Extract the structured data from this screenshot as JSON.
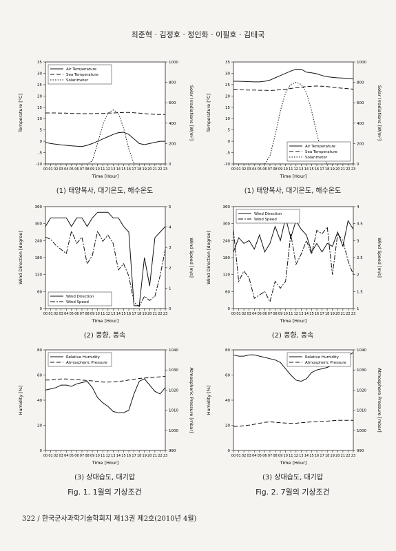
{
  "header": "최준혁 · 김정호 · 정인화 · 이필호 · 김태국",
  "footer": "322 / 한국군사과학기술학회지 제13권 제2호(2010년 4월)",
  "captions": {
    "jan_solar": "(1) 태양복사, 대기온도, 해수온도",
    "jul_solar": "(1) 태양복사, 대기온도, 해수온도",
    "jan_wind": "(2) 풍향, 풍속",
    "jul_wind": "(2) 풍향, 풍속",
    "jan_humid": "(3) 상대습도, 대기압",
    "jul_humid": "(3) 상대습도, 대기압",
    "fig1": "Fig. 1. 1월의 기상조건",
    "fig2": "Fig. 2. 7월의 기상조건"
  },
  "chart_data": [
    {
      "id": "jan_solar",
      "type": "line",
      "xlabel": "Time [Hour]",
      "ylabel": "Temperature [°C]",
      "y2label": "Solar Irradiations [W/m²]",
      "ylim": [
        -10,
        35
      ],
      "yticks": [
        -10,
        -5,
        0,
        5,
        10,
        15,
        20,
        25,
        30,
        35
      ],
      "y2lim": [
        0,
        1000
      ],
      "y2ticks": [
        0,
        200,
        400,
        600,
        800,
        1000
      ],
      "legend": "top-left",
      "x": [
        "00",
        "01",
        "02",
        "03",
        "04",
        "05",
        "06",
        "07",
        "08",
        "09",
        "10",
        "11",
        "12",
        "13",
        "14",
        "15",
        "16",
        "17",
        "18",
        "19",
        "20",
        "21",
        "22",
        "23"
      ],
      "series": [
        {
          "name": "Air Temperature",
          "axis": "left",
          "dash": "solid",
          "values": [
            -0.5,
            -1,
            -1.3,
            -1.6,
            -1.8,
            -2,
            -2.2,
            -2.3,
            -1.8,
            -1,
            0,
            1,
            2,
            3,
            3.8,
            4,
            3,
            1,
            -1,
            -1.5,
            -1,
            -0.5,
            0,
            0
          ]
        },
        {
          "name": "Sea Temperature",
          "axis": "left",
          "dash": "dashed",
          "values": [
            12.5,
            12.5,
            12.5,
            12.4,
            12.4,
            12.3,
            12.3,
            12.2,
            12.2,
            12.2,
            12.3,
            12.3,
            12.4,
            12.5,
            12.6,
            12.7,
            12.7,
            12.6,
            12.4,
            12.2,
            12,
            11.9,
            11.8,
            11.8
          ]
        },
        {
          "name": "Solarimeter",
          "axis": "right",
          "dash": "dotted",
          "values": [
            0,
            0,
            0,
            0,
            0,
            0,
            0,
            0,
            0,
            30,
            200,
            380,
            500,
            530,
            500,
            350,
            150,
            0,
            0,
            0,
            0,
            0,
            0,
            0
          ]
        }
      ]
    },
    {
      "id": "jul_solar",
      "type": "line",
      "xlabel": "Time [Hour]",
      "ylabel": "Temperature [°C]",
      "y2label": "Solar Irradiations [W/m²]",
      "ylim": [
        -10,
        35
      ],
      "yticks": [
        -10,
        -5,
        0,
        5,
        10,
        15,
        20,
        25,
        30,
        35
      ],
      "y2lim": [
        0,
        1000
      ],
      "y2ticks": [
        0,
        200,
        400,
        600,
        800,
        1000
      ],
      "legend": "bottom-right",
      "x": [
        "00",
        "01",
        "02",
        "03",
        "04",
        "05",
        "06",
        "07",
        "08",
        "09",
        "10",
        "11",
        "12",
        "13",
        "14",
        "15",
        "16",
        "17",
        "18",
        "19",
        "20",
        "21",
        "22",
        "23"
      ],
      "series": [
        {
          "name": "Air Temperature",
          "axis": "left",
          "dash": "solid",
          "values": [
            26.5,
            26.5,
            26.4,
            26.3,
            26.2,
            26.2,
            26.5,
            27,
            28,
            29,
            30,
            31,
            31.8,
            31.8,
            30.5,
            30.2,
            29.8,
            29,
            28.5,
            28.2,
            28,
            27.9,
            27.8,
            27.5
          ]
        },
        {
          "name": "Sea Temperature",
          "axis": "left",
          "dash": "dashed",
          "values": [
            23,
            22.8,
            22.7,
            22.6,
            22.6,
            22.5,
            22.5,
            22.4,
            22.5,
            22.8,
            23,
            23.3,
            23.6,
            23.9,
            24.1,
            24.3,
            24.4,
            24.3,
            24.1,
            23.9,
            23.6,
            23.4,
            23.2,
            23
          ]
        },
        {
          "name": "Solarimeter",
          "axis": "right",
          "dash": "dotted",
          "values": [
            0,
            0,
            0,
            0,
            0,
            0,
            0,
            80,
            280,
            520,
            700,
            780,
            800,
            780,
            700,
            520,
            300,
            80,
            0,
            0,
            0,
            0,
            0,
            0
          ]
        }
      ]
    },
    {
      "id": "jan_wind",
      "type": "line",
      "xlabel": "Time [Hour]",
      "ylabel": "Wind Direction [degree]",
      "y2label": "Wind Speed [m/s]",
      "ylim": [
        0,
        360
      ],
      "yticks": [
        0,
        60,
        120,
        180,
        240,
        300,
        360
      ],
      "y2lim": [
        0,
        5
      ],
      "y2ticks": [
        0,
        1,
        2,
        3,
        4,
        5
      ],
      "legend": "bottom-left",
      "x": [
        "00",
        "01",
        "02",
        "03",
        "04",
        "05",
        "06",
        "07",
        "08",
        "09",
        "10",
        "11",
        "12",
        "13",
        "14",
        "15",
        "16",
        "17",
        "18",
        "19",
        "20",
        "21",
        "22",
        "23"
      ],
      "series": [
        {
          "name": "Wind Direction",
          "axis": "left",
          "dash": "solid",
          "values": [
            290,
            320,
            320,
            320,
            320,
            290,
            320,
            320,
            290,
            320,
            340,
            340,
            340,
            320,
            320,
            290,
            270,
            10,
            10,
            180,
            80,
            250,
            270,
            290
          ]
        },
        {
          "name": "Wind Speed",
          "axis": "right",
          "dash": "dashdot",
          "values": [
            3.5,
            3.4,
            3.1,
            2.9,
            2.7,
            3.8,
            3.2,
            3.5,
            2.2,
            2.6,
            3.8,
            3.3,
            3.6,
            3.2,
            1.9,
            2.2,
            1.6,
            0.3,
            0.1,
            0.6,
            0.4,
            0.6,
            1.6,
            2.9
          ]
        }
      ]
    },
    {
      "id": "jul_wind",
      "type": "line",
      "xlabel": "Time [Hour]",
      "ylabel": "Wind Direction [degree]",
      "y2label": "Wind Speed [m/s]",
      "ylim": [
        0,
        360
      ],
      "yticks": [
        0,
        60,
        120,
        180,
        240,
        300,
        360
      ],
      "y2lim": [
        1.0,
        4.0
      ],
      "y2ticks": [
        1.0,
        1.5,
        2.0,
        2.5,
        3.0,
        3.5,
        4.0
      ],
      "legend": "top-left",
      "x": [
        "00",
        "01",
        "02",
        "03",
        "04",
        "05",
        "06",
        "07",
        "08",
        "09",
        "10",
        "11",
        "12",
        "13",
        "14",
        "15",
        "16",
        "17",
        "18",
        "19",
        "20",
        "21",
        "22",
        "23"
      ],
      "series": [
        {
          "name": "Wind Direction",
          "axis": "left",
          "dash": "solid",
          "values": [
            200,
            250,
            230,
            240,
            210,
            260,
            200,
            230,
            290,
            240,
            320,
            250,
            310,
            280,
            260,
            200,
            230,
            200,
            230,
            220,
            270,
            220,
            310,
            280
          ]
        },
        {
          "name": "Wind Speed",
          "axis": "right",
          "dash": "dashdot",
          "values": [
            3.3,
            1.8,
            2.1,
            1.9,
            1.3,
            1.4,
            1.5,
            1.2,
            1.8,
            1.6,
            1.8,
            3.2,
            2.3,
            2.6,
            3.0,
            2.6,
            3.3,
            3.2,
            3.4,
            2.0,
            3.2,
            3.0,
            2.4,
            2.0
          ]
        }
      ]
    },
    {
      "id": "jan_humid",
      "type": "line",
      "xlabel": "Time [Hour]",
      "ylabel": "Humidity [%]",
      "y2label": "Atmospheric Pressure [mbar]",
      "ylim": [
        0,
        80
      ],
      "yticks": [
        0,
        20,
        40,
        60,
        80
      ],
      "y2lim": [
        990,
        1040
      ],
      "y2ticks": [
        990,
        1000,
        1010,
        1020,
        1030,
        1040
      ],
      "legend": "top-left",
      "x": [
        "00",
        "01",
        "02",
        "03",
        "04",
        "05",
        "06",
        "07",
        "08",
        "09",
        "10",
        "11",
        "12",
        "13",
        "14",
        "15",
        "16",
        "17",
        "18",
        "19",
        "20",
        "21",
        "22",
        "23"
      ],
      "series": [
        {
          "name": "Relative Humidity",
          "axis": "left",
          "dash": "solid",
          "values": [
            48,
            49,
            50,
            52,
            52,
            51,
            53,
            54,
            55,
            50,
            42,
            38,
            35,
            31,
            30,
            30,
            32,
            45,
            55,
            57,
            52,
            47,
            45,
            50
          ]
        },
        {
          "name": "Atmospheric Pressure",
          "axis": "right",
          "dash": "dashed",
          "values": [
            1025,
            1025,
            1025.3,
            1025.5,
            1025.5,
            1025.3,
            1025.2,
            1025,
            1024.8,
            1024.6,
            1024.3,
            1024,
            1024,
            1024.1,
            1024.3,
            1024.6,
            1025,
            1025.4,
            1025.8,
            1026,
            1026.2,
            1026.4,
            1026.6,
            1026.8
          ]
        }
      ]
    },
    {
      "id": "jul_humid",
      "type": "line",
      "xlabel": "Time [Hour]",
      "ylabel": "Humidity [%]",
      "y2label": "Atmosphere Pressure [mbar]",
      "ylim": [
        0,
        80
      ],
      "yticks": [
        0,
        20,
        40,
        60,
        80
      ],
      "y2lim": [
        990,
        1040
      ],
      "y2ticks": [
        990,
        1000,
        1010,
        1020,
        1030,
        1040
      ],
      "legend": "top-right",
      "x": [
        "00",
        "01",
        "02",
        "03",
        "04",
        "05",
        "06",
        "07",
        "08",
        "09",
        "10",
        "11",
        "12",
        "13",
        "14",
        "15",
        "16",
        "17",
        "18",
        "19",
        "20",
        "21",
        "22",
        "23"
      ],
      "series": [
        {
          "name": "Relative Humidity",
          "axis": "left",
          "dash": "solid",
          "values": [
            76,
            75,
            75,
            76,
            76,
            75,
            74,
            73,
            72,
            70,
            65,
            60,
            56,
            55,
            57,
            62,
            64,
            65,
            66,
            68,
            70,
            72,
            75,
            78
          ]
        },
        {
          "name": "Atmospheric Pressure",
          "axis": "right",
          "dash": "dashed",
          "values": [
            1002,
            1002,
            1002.3,
            1002.6,
            1003,
            1003.5,
            1004,
            1004.2,
            1004,
            1003.8,
            1003.6,
            1003.5,
            1003.5,
            1003.8,
            1004,
            1004.2,
            1004.4,
            1004.5,
            1004.6,
            1004.8,
            1005,
            1005,
            1005,
            1005
          ]
        }
      ]
    }
  ]
}
